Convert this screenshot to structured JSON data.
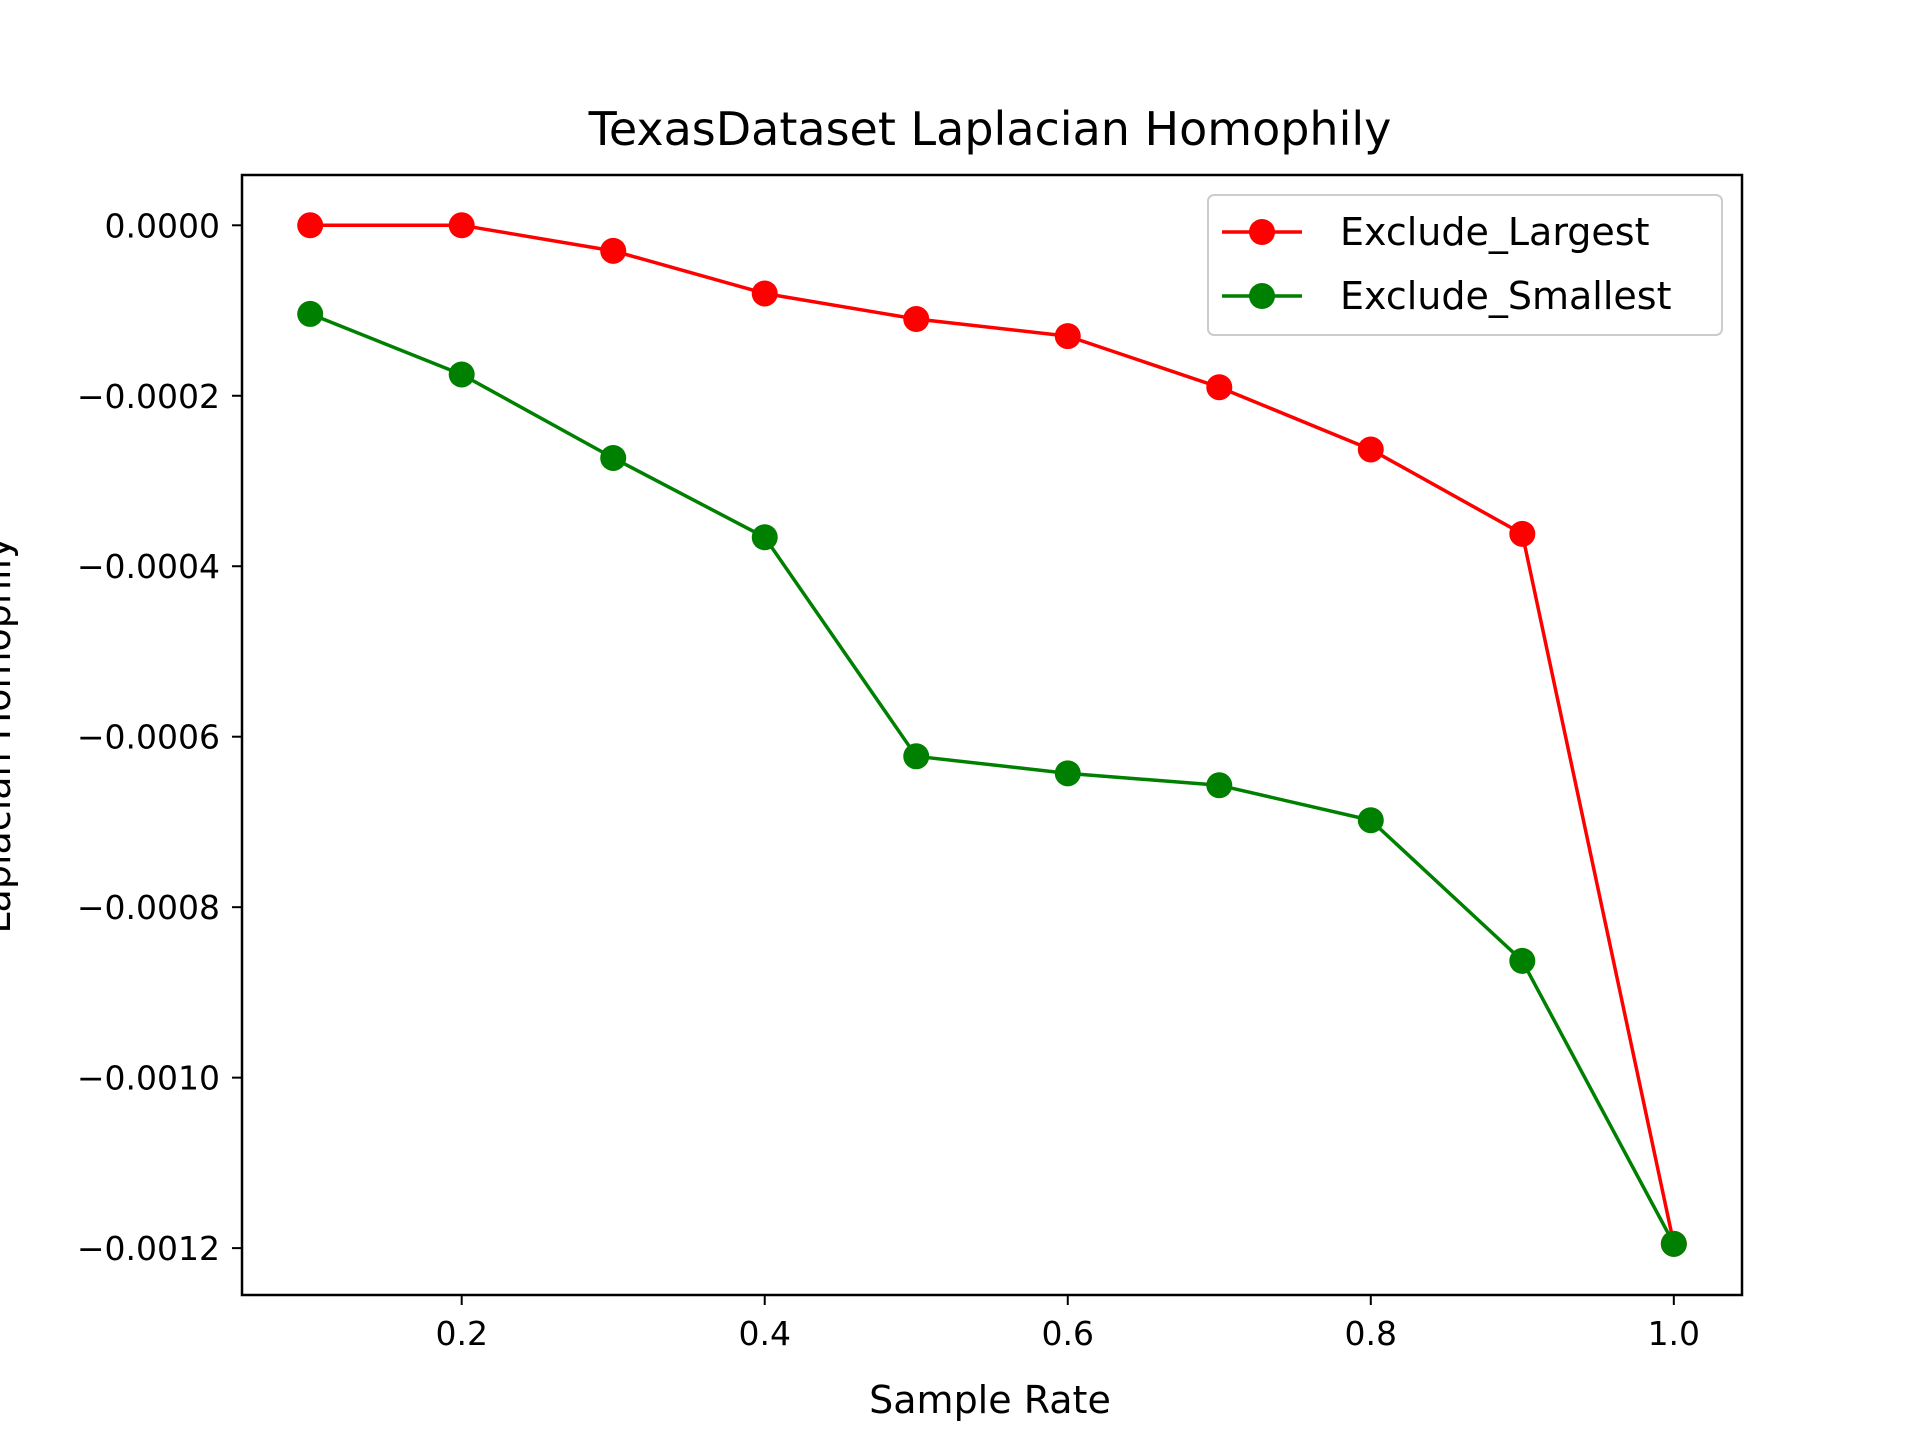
{
  "chart_data": {
    "type": "line",
    "title": "TexasDataset Laplacian Homophily",
    "xlabel": "Sample Rate",
    "ylabel": "Laplacian Homophily",
    "xlim": [
      0.055,
      1.045
    ],
    "ylim": [
      -0.001255,
      5.9e-05
    ],
    "x_ticks": [
      0.2,
      0.4,
      0.6,
      0.8,
      1.0
    ],
    "x_tick_labels": [
      "0.2",
      "0.4",
      "0.6",
      "0.8",
      "1.0"
    ],
    "y_ticks": [
      0.0,
      -0.0002,
      -0.0004,
      -0.0006,
      -0.0008,
      -0.001,
      -0.0012
    ],
    "y_tick_labels": [
      "0.0000",
      "−0.0002",
      "−0.0004",
      "−0.0006",
      "−0.0008",
      "−0.0010",
      "−0.0012"
    ],
    "grid": false,
    "legend_position": "top-right",
    "x": [
      0.1,
      0.2,
      0.3,
      0.4,
      0.5,
      0.6,
      0.7,
      0.8,
      0.9,
      1.0
    ],
    "series": [
      {
        "name": "Exclude_Largest",
        "color": "#ff0000",
        "marker": "circle",
        "values": [
          0.0,
          0.0,
          -3e-05,
          -8e-05,
          -0.00011,
          -0.00013,
          -0.00019,
          -0.000263,
          -0.000362,
          -0.001195
        ]
      },
      {
        "name": "Exclude_Smallest",
        "color": "#008000",
        "marker": "circle",
        "values": [
          -0.000104,
          -0.000175,
          -0.000273,
          -0.000366,
          -0.000623,
          -0.000643,
          -0.000657,
          -0.000698,
          -0.000863,
          -0.001195
        ]
      }
    ]
  }
}
